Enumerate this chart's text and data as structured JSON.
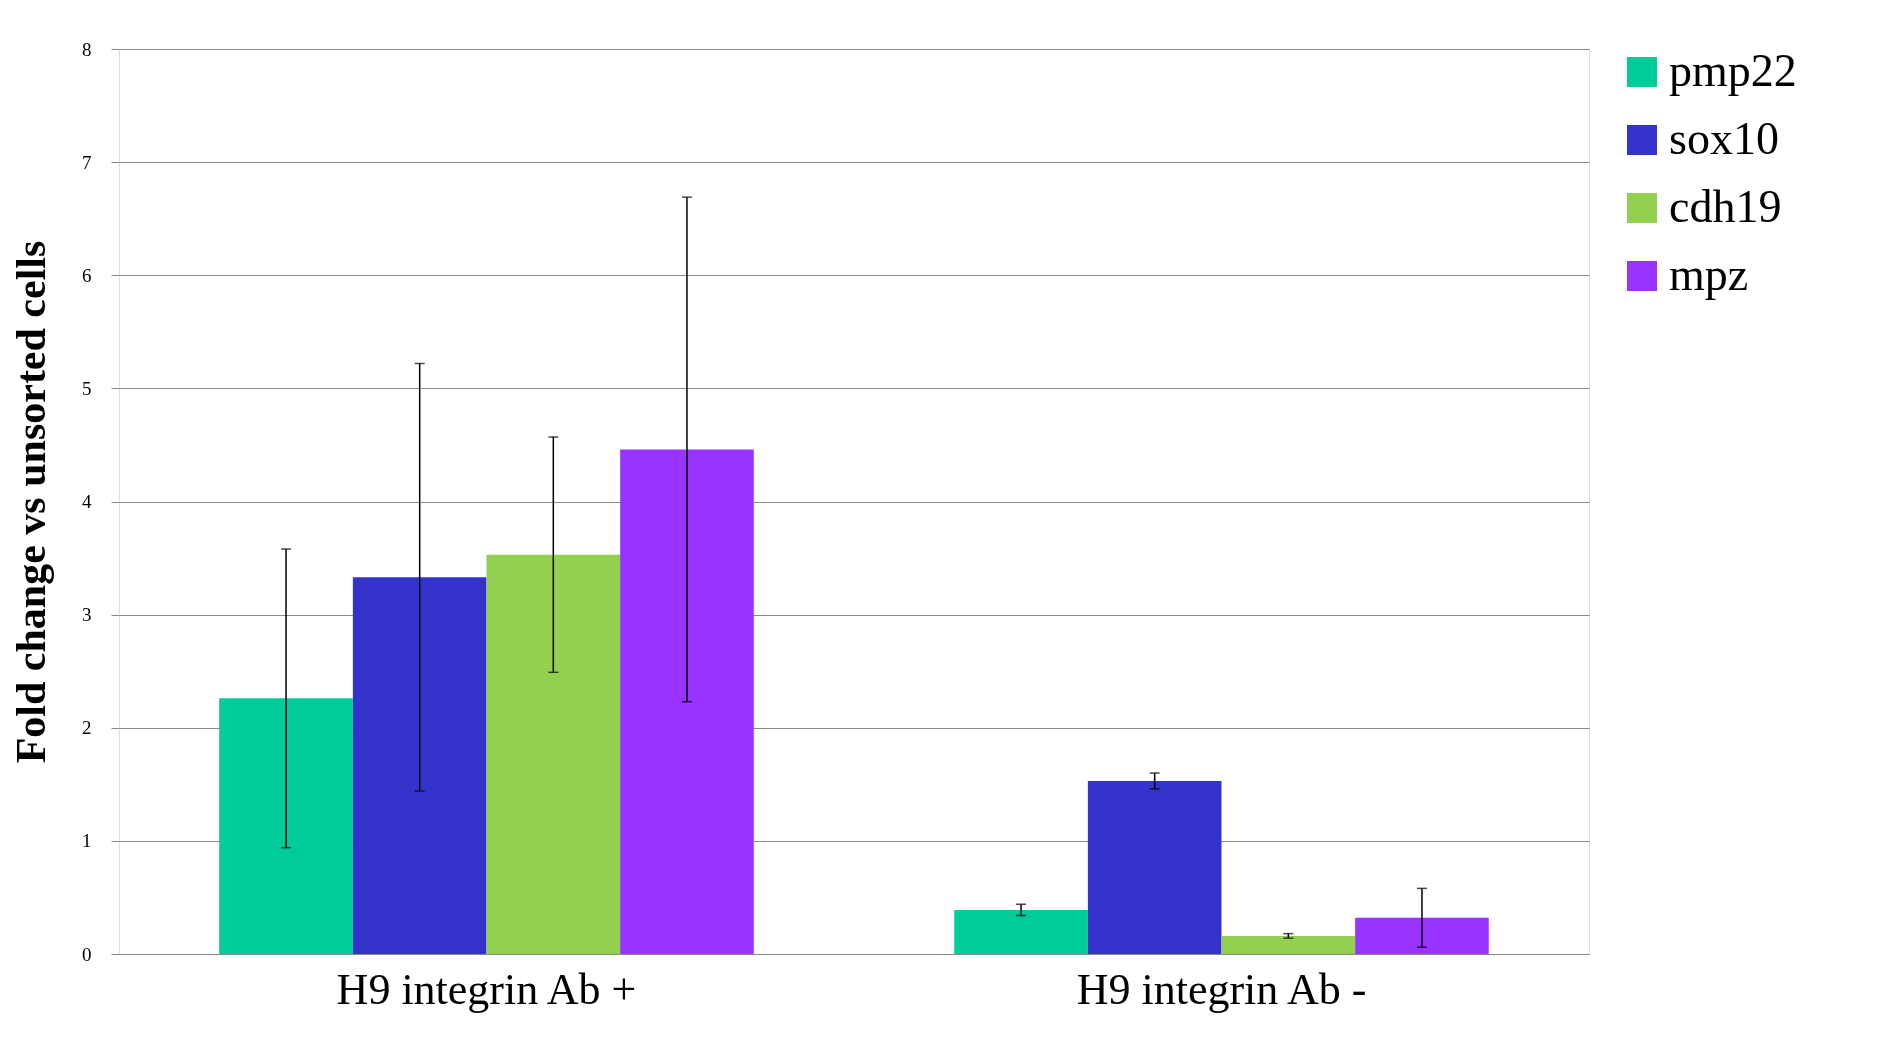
{
  "chart_data": {
    "type": "bar",
    "ylabel": "Fold change vs unsorted cells",
    "categories": [
      "H9 integrin Ab +",
      "H9 integrin Ab -"
    ],
    "series": [
      {
        "name": "pmp22",
        "color": "#00cc99",
        "values": [
          2.26,
          0.39
        ],
        "errors": [
          1.32,
          0.05
        ]
      },
      {
        "name": "sox10",
        "color": "#3333cc",
        "values": [
          3.33,
          1.53
        ],
        "errors": [
          1.89,
          0.07
        ]
      },
      {
        "name": "cdh19",
        "color": "#92d050",
        "values": [
          3.53,
          0.16
        ],
        "errors": [
          1.04,
          0.02
        ]
      },
      {
        "name": "mpz",
        "color": "#9933ff",
        "values": [
          4.46,
          0.32
        ],
        "errors": [
          2.23,
          0.26
        ]
      }
    ],
    "ylim": [
      0,
      8
    ],
    "yticks": [
      0,
      1,
      2,
      3,
      4,
      5,
      6,
      7,
      8
    ],
    "grid": "y",
    "legend": "right"
  }
}
